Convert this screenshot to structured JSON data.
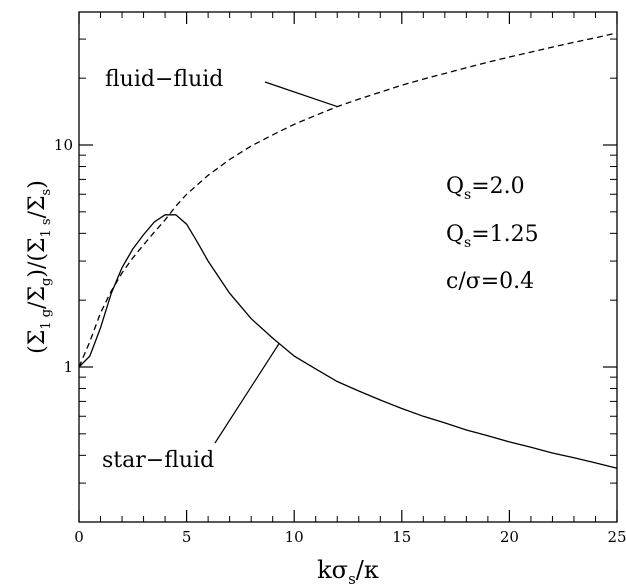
{
  "chart_data": {
    "type": "line",
    "xlabel": "kσs/κ",
    "ylabel": "(Σ1g/Σg)/(Σ1s/Σs)",
    "xlim": [
      0,
      25
    ],
    "ylim": [
      0.2,
      40
    ],
    "yscale": "log",
    "x_ticks": [
      "0",
      "5",
      "10",
      "15",
      "20",
      "25"
    ],
    "y_ticks": [
      "1",
      "10"
    ],
    "grid": false,
    "series": [
      {
        "name": "fluid−fluid",
        "style": "dashed",
        "points": [
          [
            0,
            1.0
          ],
          [
            0.5,
            1.3
          ],
          [
            1,
            1.75
          ],
          [
            1.5,
            2.2
          ],
          [
            2,
            2.65
          ],
          [
            2.5,
            3.1
          ],
          [
            3,
            3.55
          ],
          [
            3.5,
            4.05
          ],
          [
            4,
            4.6
          ],
          [
            4.5,
            5.3
          ],
          [
            5,
            6.0
          ],
          [
            6,
            7.3
          ],
          [
            7,
            8.6
          ],
          [
            8,
            9.9
          ],
          [
            9,
            11.1
          ],
          [
            10,
            12.4
          ],
          [
            11,
            13.6
          ],
          [
            12,
            14.9
          ],
          [
            13,
            16.1
          ],
          [
            14,
            17.3
          ],
          [
            15,
            18.6
          ],
          [
            16,
            19.8
          ],
          [
            17,
            21.0
          ],
          [
            18,
            22.3
          ],
          [
            19,
            23.6
          ],
          [
            20,
            24.9
          ],
          [
            21,
            26.2
          ],
          [
            22,
            27.6
          ],
          [
            23,
            29.0
          ],
          [
            24,
            30.4
          ],
          [
            25,
            32.0
          ]
        ]
      },
      {
        "name": "star−fluid",
        "style": "solid",
        "points": [
          [
            0,
            1.0
          ],
          [
            0.5,
            1.12
          ],
          [
            1,
            1.5
          ],
          [
            1.5,
            2.15
          ],
          [
            2,
            2.8
          ],
          [
            2.5,
            3.4
          ],
          [
            3,
            3.95
          ],
          [
            3.5,
            4.5
          ],
          [
            4,
            4.85
          ],
          [
            4.5,
            4.85
          ],
          [
            5,
            4.4
          ],
          [
            5.5,
            3.65
          ],
          [
            6,
            3.0
          ],
          [
            7,
            2.15
          ],
          [
            8,
            1.65
          ],
          [
            9,
            1.35
          ],
          [
            10,
            1.12
          ],
          [
            11,
            0.98
          ],
          [
            12,
            0.86
          ],
          [
            13,
            0.78
          ],
          [
            14,
            0.71
          ],
          [
            15,
            0.65
          ],
          [
            16,
            0.6
          ],
          [
            17,
            0.56
          ],
          [
            18,
            0.52
          ],
          [
            19,
            0.49
          ],
          [
            20,
            0.46
          ],
          [
            21,
            0.435
          ],
          [
            22,
            0.41
          ],
          [
            23,
            0.39
          ],
          [
            24,
            0.37
          ],
          [
            25,
            0.35
          ]
        ]
      }
    ],
    "annotations": [
      {
        "text": "fluid−fluid",
        "points_to_x": 12,
        "series": "fluid−fluid"
      },
      {
        "text": "star−fluid",
        "points_to_x": 9.3,
        "series": "star−fluid"
      }
    ],
    "parameters": [
      "Qs=2.0",
      "Qs=1.25",
      "c/σ=0.4"
    ]
  }
}
